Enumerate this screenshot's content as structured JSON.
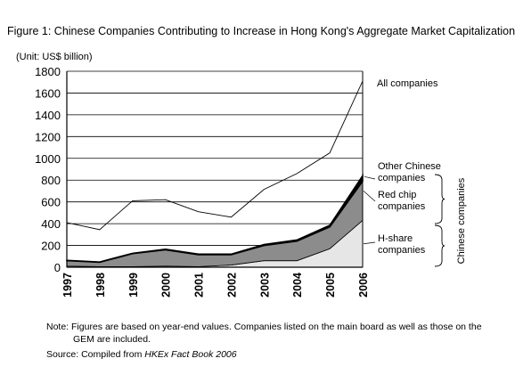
{
  "figure_title": "Figure 1: Chinese Companies Contributing to Increase in Hong Kong's Aggregate Market Capitalization",
  "note": "Note: Figures are based on year-end values. Companies listed on the main board as well as those on the GEM are included.",
  "source_prefix": "Source: Compiled from ",
  "source_title": "HKEx Fact Book 2006",
  "chart_data": {
    "type": "area",
    "unit_label": "(Unit: US$ billion)",
    "categories": [
      "1997",
      "1998",
      "1999",
      "2000",
      "2001",
      "2002",
      "2003",
      "2004",
      "2005",
      "2006"
    ],
    "ylim": [
      0,
      1800
    ],
    "yticks": [
      0,
      200,
      400,
      600,
      800,
      1000,
      1200,
      1400,
      1600,
      1800
    ],
    "grid": true,
    "stacked_series": [
      {
        "name": "H-share companies",
        "values": [
          10,
          5,
          5,
          10,
          5,
          20,
          60,
          60,
          170,
          430
        ],
        "color": "#e6e6e6"
      },
      {
        "name": "Red chip companies",
        "values": [
          50,
          40,
          120,
          150,
          110,
          95,
          140,
          180,
          200,
          360
        ],
        "color": "#8c8c8c"
      },
      {
        "name": "Other Chinese companies",
        "values": [
          3,
          3,
          3,
          5,
          5,
          5,
          8,
          10,
          15,
          50
        ],
        "color": "#000000"
      }
    ],
    "line_series": {
      "name": "All companies",
      "values": [
        410,
        345,
        610,
        620,
        510,
        460,
        715,
        860,
        1050,
        1710
      ]
    },
    "group_label": "Chinese companies",
    "legend_other": [
      "Other Chinese",
      "companies"
    ],
    "legend_red": [
      "Red chip",
      "companies"
    ],
    "legend_h": [
      "H-share",
      "companies"
    ]
  }
}
